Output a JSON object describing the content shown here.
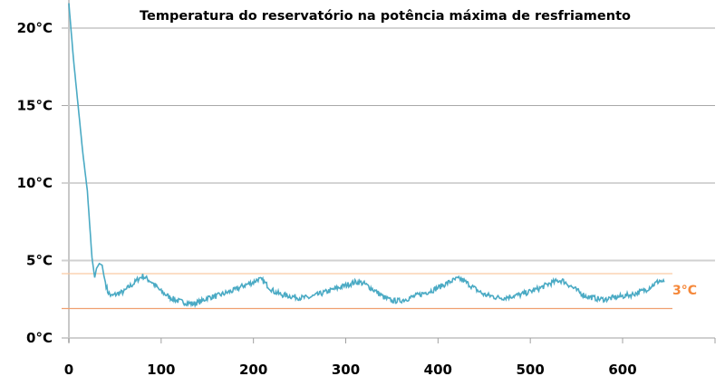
{
  "chart_data": {
    "type": "line",
    "title": "Temperatura do reservatório na potência máxima de resfriamento",
    "xlabel": "",
    "ylabel": "",
    "xlim": [
      0,
      700
    ],
    "ylim": [
      0,
      20
    ],
    "grid": "horizontal",
    "x_ticks": [
      "0",
      "100",
      "200",
      "300",
      "400",
      "500",
      "600"
    ],
    "y_ticks": [
      "0°C",
      "5°C",
      "10°C",
      "15°C",
      "20°C"
    ],
    "series": [
      {
        "name": "Temperatura",
        "color": "#4aaac4",
        "x": [
          0,
          5,
          10,
          15,
          20,
          25,
          28,
          30,
          33,
          36,
          38,
          42,
          46,
          50,
          55,
          60,
          65,
          70,
          75,
          80,
          85,
          90,
          95,
          100,
          110,
          118,
          125,
          135,
          145,
          150,
          160,
          170,
          180,
          190,
          200,
          205,
          210,
          215,
          222,
          230,
          240,
          250,
          260,
          270,
          280,
          290,
          300,
          310,
          315,
          320,
          328,
          335,
          342,
          350,
          358,
          365,
          375,
          385,
          395,
          405,
          412,
          420,
          425,
          430,
          435,
          442,
          450,
          458,
          465,
          472,
          480,
          490,
          500,
          510,
          520,
          530,
          535,
          540,
          545,
          552,
          560,
          568,
          575,
          582,
          590,
          600,
          610,
          620,
          625,
          630,
          635,
          640,
          645
        ],
        "y": [
          21.6,
          18,
          15,
          12,
          9.5,
          5.2,
          3.9,
          4.5,
          4.8,
          4.7,
          4.0,
          3.0,
          2.7,
          2.8,
          2.9,
          3.0,
          3.3,
          3.5,
          3.8,
          4.0,
          3.8,
          3.6,
          3.3,
          3.0,
          2.6,
          2.4,
          2.3,
          2.2,
          2.4,
          2.6,
          2.7,
          2.9,
          3.1,
          3.4,
          3.6,
          3.8,
          3.7,
          3.4,
          3.0,
          2.8,
          2.7,
          2.6,
          2.6,
          2.8,
          3.0,
          3.2,
          3.4,
          3.6,
          3.6,
          3.5,
          3.2,
          2.9,
          2.6,
          2.4,
          2.4,
          2.5,
          2.7,
          2.9,
          3.1,
          3.4,
          3.6,
          3.8,
          3.8,
          3.6,
          3.4,
          3.1,
          2.8,
          2.7,
          2.6,
          2.6,
          2.7,
          2.8,
          3.0,
          3.2,
          3.5,
          3.7,
          3.7,
          3.5,
          3.3,
          3.0,
          2.7,
          2.6,
          2.5,
          2.5,
          2.6,
          2.7,
          2.8,
          3.0,
          3.1,
          3.3,
          3.5,
          3.7,
          3.6
        ]
      }
    ],
    "reference_lines": [
      {
        "value": 4.15,
        "color": "#f9c9a3"
      },
      {
        "value": 1.9,
        "color": "#f0a070"
      }
    ],
    "annotations": [
      {
        "text": "3°C",
        "color": "#f5883a"
      }
    ]
  }
}
